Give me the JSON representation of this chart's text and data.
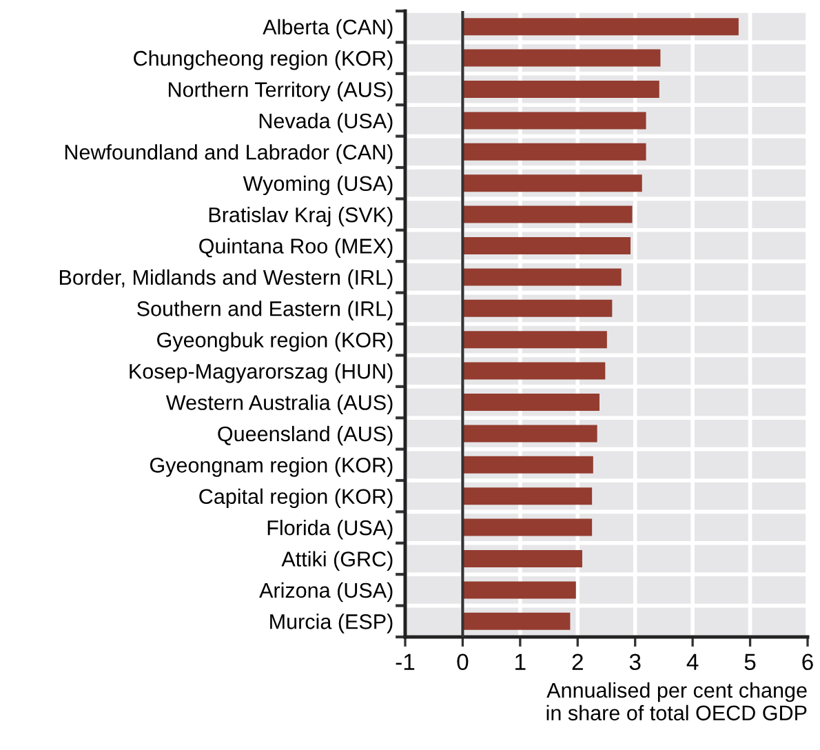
{
  "chart_data": {
    "type": "bar",
    "orientation": "horizontal",
    "categories": [
      "Alberta (CAN)",
      "Chungcheong region (KOR)",
      "Northern Territory (AUS)",
      "Nevada (USA)",
      "Newfoundland and Labrador (CAN)",
      "Wyoming (USA)",
      "Bratislav Kraj (SVK)",
      "Quintana Roo (MEX)",
      "Border, Midlands and Western (IRL)",
      "Southern and Eastern (IRL)",
      "Gyeongbuk region (KOR)",
      "Kosep-Magyarorszag (HUN)",
      "Western Australia (AUS)",
      "Queensland (AUS)",
      "Gyeongnam region (KOR)",
      "Capital region (KOR)",
      "Florida (USA)",
      "Attiki (GRC)",
      "Arizona (USA)",
      "Murcia (ESP)"
    ],
    "values": [
      4.8,
      3.44,
      3.42,
      3.19,
      3.19,
      3.12,
      2.95,
      2.92,
      2.76,
      2.6,
      2.51,
      2.48,
      2.38,
      2.34,
      2.27,
      2.25,
      2.25,
      2.08,
      1.97,
      1.87
    ],
    "color": "#943c30",
    "xlabel": "Annualised per cent change\nin share of total OECD GDP",
    "xlim": [
      -1,
      6
    ],
    "xticks": [
      -1,
      0,
      1,
      2,
      3,
      4,
      5,
      6
    ],
    "grid": true,
    "ref_lines": [
      {
        "axis": "x",
        "value": 0,
        "color": "#333333"
      }
    ]
  }
}
